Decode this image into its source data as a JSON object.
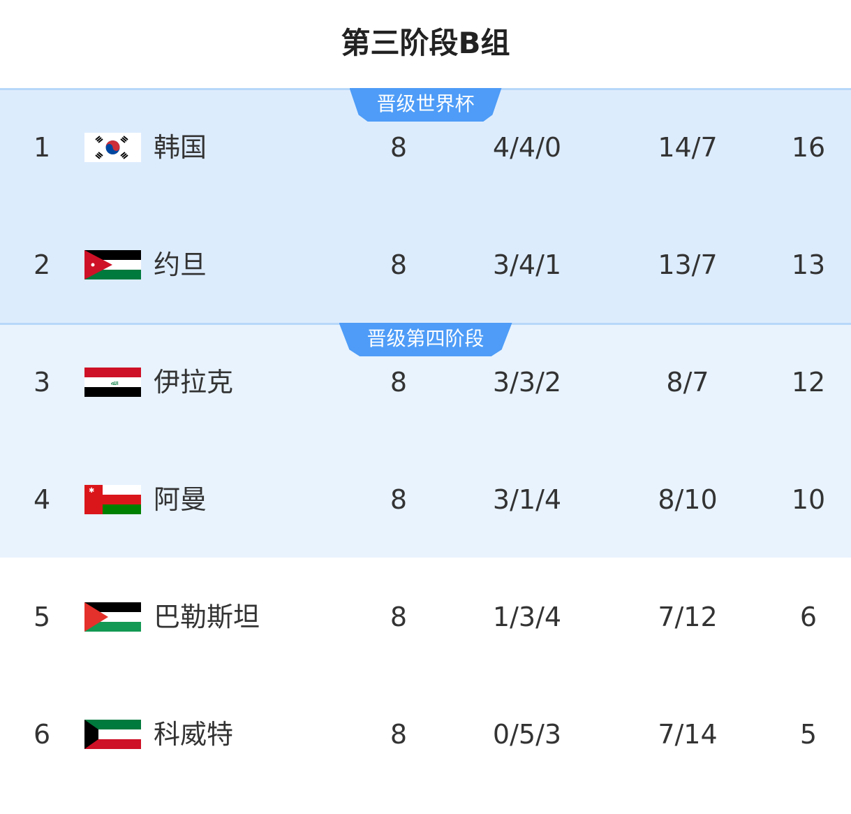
{
  "title": "第三阶段B组",
  "zones": [
    {
      "label": "晋级世界杯",
      "color": "#4e9cf7"
    },
    {
      "label": "晋级第四阶段",
      "color": "#4e9cf7"
    }
  ],
  "rows": [
    {
      "rank": "1",
      "flag": "south-korea-flag",
      "team": "韩国",
      "played": "8",
      "wdl": "4/4/0",
      "goals": "14/7",
      "points": "16"
    },
    {
      "rank": "2",
      "flag": "jordan-flag",
      "team": "约旦",
      "played": "8",
      "wdl": "3/4/1",
      "goals": "13/7",
      "points": "13"
    },
    {
      "rank": "3",
      "flag": "iraq-flag",
      "team": "伊拉克",
      "played": "8",
      "wdl": "3/3/2",
      "goals": "8/7",
      "points": "12"
    },
    {
      "rank": "4",
      "flag": "oman-flag",
      "team": "阿曼",
      "played": "8",
      "wdl": "3/1/4",
      "goals": "8/10",
      "points": "10"
    },
    {
      "rank": "5",
      "flag": "palestine-flag",
      "team": "巴勒斯坦",
      "played": "8",
      "wdl": "1/3/4",
      "goals": "7/12",
      "points": "6"
    },
    {
      "rank": "6",
      "flag": "kuwait-flag",
      "team": "科威特",
      "played": "8",
      "wdl": "0/5/3",
      "goals": "7/14",
      "points": "5"
    }
  ]
}
